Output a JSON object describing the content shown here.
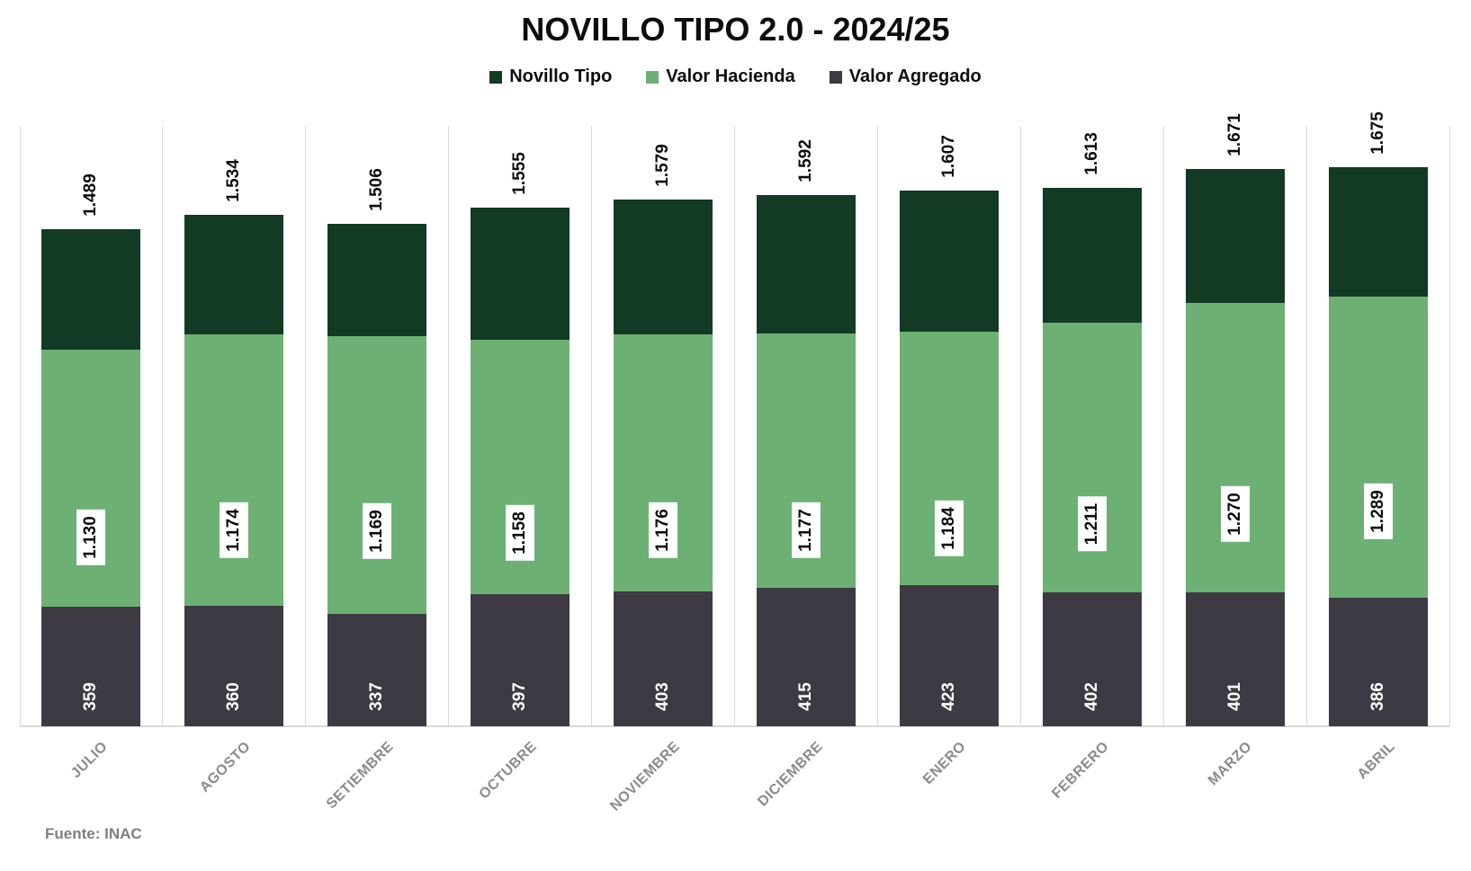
{
  "title": "NOVILLO TIPO 2.0 - 2024/25",
  "source_note": "Fuente: INAC",
  "colors": {
    "novillo_tipo": "#123a24",
    "valor_hacienda": "#6cb074",
    "valor_agregado": "#3e3a43",
    "gridline": "#d9d9d9",
    "axis_label_text": "#8b8b8b",
    "source_text": "#7f7f7f",
    "value_label_text": "#0d0d0d"
  },
  "chart_data": {
    "type": "bar",
    "subtype": "overlapped-vertical-bars",
    "title": "NOVILLO TIPO 2.0 - 2024/25",
    "categories": [
      "JULIO",
      "AGOSTO",
      "SETIEMBRE",
      "OCTUBRE",
      "NOVIEMBRE",
      "DICIEMBRE",
      "ENERO",
      "FEBRERO",
      "MARZO",
      "ABRIL"
    ],
    "series": [
      {
        "name": "Novillo Tipo",
        "color": "#123a24",
        "values": [
          1489,
          1534,
          1506,
          1555,
          1579,
          1592,
          1607,
          1613,
          1671,
          1675
        ],
        "labels": [
          "1.489",
          "1.534",
          "1.506",
          "1.555",
          "1.579",
          "1.592",
          "1.607",
          "1.613",
          "1.671",
          "1.675"
        ]
      },
      {
        "name": "Valor Hacienda",
        "color": "#6cb074",
        "values": [
          1130,
          1174,
          1169,
          1158,
          1176,
          1177,
          1184,
          1211,
          1270,
          1289
        ],
        "labels": [
          "1.130",
          "1.174",
          "1.169",
          "1.158",
          "1.176",
          "1.177",
          "1.184",
          "1.211",
          "1.270",
          "1.289"
        ]
      },
      {
        "name": "Valor Agregado",
        "color": "#3e3a43",
        "values": [
          359,
          360,
          337,
          397,
          403,
          415,
          423,
          402,
          401,
          386
        ],
        "labels": [
          "359",
          "360",
          "337",
          "397",
          "403",
          "415",
          "423",
          "402",
          "401",
          "386"
        ]
      }
    ],
    "ylim": [
      0,
      1800
    ],
    "grid": "vertical-category-separators",
    "legend_position": "top",
    "legend_entries": [
      "Novillo Tipo",
      "Valor Hacienda",
      "Valor Agregado"
    ]
  }
}
